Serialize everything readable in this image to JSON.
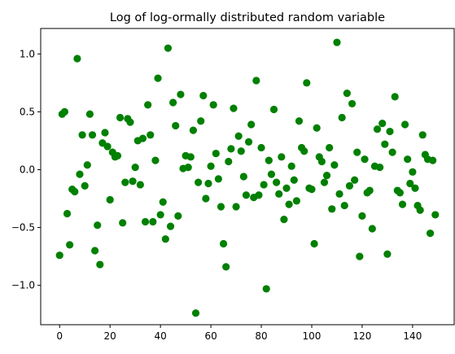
{
  "chart_data": {
    "type": "scatter",
    "title": "Log of log-ormally distributed random variable",
    "xlabel": "",
    "ylabel": "",
    "xlim": [
      -7.5,
      156.5
    ],
    "ylim": [
      -1.34,
      1.22
    ],
    "xticks": [
      0,
      20,
      40,
      60,
      80,
      100,
      120,
      140
    ],
    "xtick_labels": [
      "0",
      "20",
      "40",
      "60",
      "80",
      "100",
      "120",
      "140"
    ],
    "yticks": [
      -1.0,
      -0.5,
      0.0,
      0.5,
      1.0
    ],
    "ytick_labels": [
      "−1.0",
      "−0.5",
      "0.0",
      "0.5",
      "1.0"
    ],
    "grid": false,
    "marker_color": "#008000",
    "series": [
      {
        "x": [
          0,
          1,
          2,
          3,
          4,
          5,
          6,
          7,
          8,
          9,
          10,
          11,
          12,
          13,
          14,
          15,
          16,
          17,
          18,
          19,
          20,
          21,
          22,
          23,
          24,
          25,
          26,
          27,
          28,
          29,
          30,
          31,
          32,
          33,
          34,
          35,
          36,
          37,
          38,
          39,
          40,
          41,
          42,
          43,
          44,
          45,
          46,
          47,
          48,
          49,
          50,
          51,
          52,
          53,
          54,
          55,
          56,
          57,
          58,
          59,
          60,
          61,
          62,
          63,
          64,
          65,
          66,
          67,
          68,
          69,
          70,
          71,
          72,
          73,
          74,
          75,
          76,
          77,
          78,
          79,
          80,
          81,
          82,
          83,
          84,
          85,
          86,
          87,
          88,
          89,
          90,
          91,
          92,
          93,
          94,
          95,
          96,
          97,
          98,
          99,
          100,
          101,
          102,
          103,
          104,
          105,
          106,
          107,
          108,
          109,
          110,
          111,
          112,
          113,
          114,
          115,
          116,
          117,
          118,
          119,
          120,
          121,
          122,
          123,
          124,
          125,
          126,
          127,
          128,
          129,
          130,
          131,
          132,
          133,
          134,
          135,
          136,
          137,
          138,
          139,
          140,
          141,
          142,
          143,
          144,
          145,
          146,
          147,
          148,
          149
        ],
        "y": [
          -0.74,
          0.48,
          0.5,
          -0.38,
          -0.65,
          -0.17,
          -0.19,
          0.96,
          -0.04,
          0.3,
          -0.14,
          0.04,
          0.48,
          0.3,
          -0.7,
          -0.48,
          -0.82,
          0.23,
          0.32,
          0.2,
          -0.26,
          0.15,
          0.11,
          0.12,
          0.45,
          -0.46,
          -0.11,
          0.44,
          0.41,
          -0.1,
          0.02,
          0.25,
          -0.13,
          0.27,
          -0.45,
          0.56,
          0.3,
          -0.45,
          0.08,
          0.79,
          -0.39,
          -0.28,
          -0.6,
          1.05,
          -0.49,
          0.58,
          0.38,
          -0.4,
          0.65,
          0.01,
          0.12,
          0.02,
          0.11,
          0.34,
          -1.24,
          -0.11,
          0.42,
          0.64,
          -0.25,
          -0.12,
          0.03,
          0.56,
          0.14,
          -0.08,
          -0.32,
          -0.64,
          -0.84,
          0.07,
          0.18,
          0.53,
          -0.32,
          0.29,
          0.16,
          -0.06,
          -0.22,
          0.24,
          0.39,
          -0.24,
          0.77,
          -0.22,
          0.19,
          -0.13,
          -1.03,
          0.08,
          -0.04,
          0.52,
          -0.11,
          -0.21,
          0.11,
          -0.43,
          -0.16,
          -0.3,
          0.03,
          -0.09,
          -0.27,
          0.42,
          0.19,
          0.16,
          0.75,
          -0.16,
          -0.17,
          -0.64,
          0.36,
          0.11,
          0.07,
          -0.11,
          -0.05,
          0.19,
          -0.34,
          0.04,
          1.1,
          -0.21,
          0.45,
          -0.31,
          0.66,
          -0.14,
          0.57,
          -0.09,
          0.15,
          -0.75,
          -0.4,
          0.09,
          -0.2,
          -0.18,
          -0.51,
          0.03,
          0.35,
          0.02,
          0.4,
          0.22,
          -0.73,
          0.33,
          0.15,
          0.63,
          -0.18,
          -0.2,
          -0.3,
          0.39,
          0.09,
          -0.12,
          -0.02,
          -0.16,
          -0.31,
          -0.35,
          0.3,
          0.13,
          0.09,
          -0.55,
          0.08,
          -0.39
        ]
      }
    ]
  }
}
